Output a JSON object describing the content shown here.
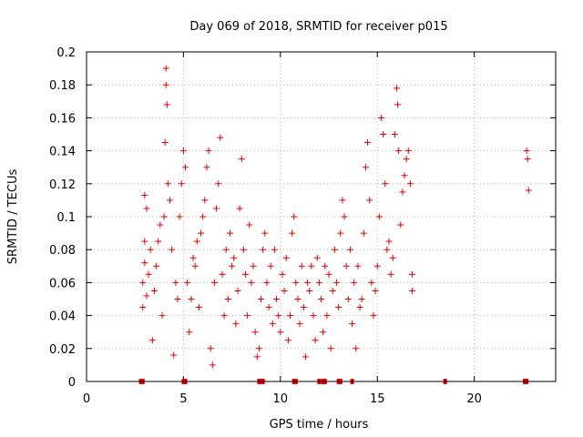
{
  "chart_data": {
    "type": "scatter",
    "title": "Day 069 of 2018, SRMTID for receiver p015",
    "xlabel": "GPS time / hours",
    "ylabel": "SRMTID / TECUs",
    "xlim": [
      0,
      24.2
    ],
    "ylim": [
      0,
      0.2
    ],
    "x_ticks": [
      0,
      5,
      10,
      15,
      20
    ],
    "x_tick_labels": [
      "0",
      "5",
      "10",
      "15",
      "20"
    ],
    "y_ticks": [
      0,
      0.02,
      0.04,
      0.06,
      0.08,
      0.1,
      0.12,
      0.14,
      0.16,
      0.18,
      0.2
    ],
    "y_tick_labels": [
      "0",
      "0.02",
      "0.04",
      "0.06",
      "0.08",
      "0.1",
      "0.12",
      "0.14",
      "0.16",
      "0.18",
      "0.2"
    ],
    "grid": true,
    "marker": "+",
    "marker_color": "#e00000",
    "series": [
      {
        "name": "SRMTID",
        "points": [
          [
            2.9,
            0.045
          ],
          [
            2.9,
            0.06
          ],
          [
            3.0,
            0.072
          ],
          [
            3.0,
            0.085
          ],
          [
            3.0,
            0.113
          ],
          [
            3.1,
            0.105
          ],
          [
            3.1,
            0.052
          ],
          [
            3.2,
            0.065
          ],
          [
            3.3,
            0.08
          ],
          [
            3.4,
            0.025
          ],
          [
            3.5,
            0.055
          ],
          [
            3.6,
            0.07
          ],
          [
            3.7,
            0.085
          ],
          [
            3.8,
            0.095
          ],
          [
            3.9,
            0.04
          ],
          [
            4.0,
            0.1
          ],
          [
            4.05,
            0.145
          ],
          [
            4.1,
            0.19
          ],
          [
            4.1,
            0.18
          ],
          [
            4.15,
            0.168
          ],
          [
            4.2,
            0.12
          ],
          [
            4.3,
            0.11
          ],
          [
            4.4,
            0.08
          ],
          [
            4.5,
            0.016
          ],
          [
            4.6,
            0.06
          ],
          [
            4.7,
            0.05
          ],
          [
            4.8,
            0.1
          ],
          [
            4.9,
            0.12
          ],
          [
            5.0,
            0.14
          ],
          [
            5.1,
            0.13
          ],
          [
            5.2,
            0.06
          ],
          [
            5.3,
            0.03
          ],
          [
            5.4,
            0.05
          ],
          [
            5.5,
            0.075
          ],
          [
            5.6,
            0.07
          ],
          [
            5.7,
            0.085
          ],
          [
            5.8,
            0.045
          ],
          [
            5.9,
            0.09
          ],
          [
            6.0,
            0.1
          ],
          [
            6.1,
            0.11
          ],
          [
            6.2,
            0.13
          ],
          [
            6.3,
            0.14
          ],
          [
            6.4,
            0.02
          ],
          [
            6.5,
            0.01
          ],
          [
            6.6,
            0.06
          ],
          [
            6.7,
            0.105
          ],
          [
            6.8,
            0.12
          ],
          [
            6.9,
            0.148
          ],
          [
            7.0,
            0.065
          ],
          [
            7.1,
            0.04
          ],
          [
            7.2,
            0.08
          ],
          [
            7.3,
            0.05
          ],
          [
            7.4,
            0.09
          ],
          [
            7.5,
            0.07
          ],
          [
            7.6,
            0.075
          ],
          [
            7.7,
            0.035
          ],
          [
            7.8,
            0.055
          ],
          [
            7.9,
            0.105
          ],
          [
            8.0,
            0.135
          ],
          [
            8.1,
            0.08
          ],
          [
            8.2,
            0.065
          ],
          [
            8.3,
            0.04
          ],
          [
            8.4,
            0.095
          ],
          [
            8.5,
            0.06
          ],
          [
            8.6,
            0.07
          ],
          [
            8.7,
            0.03
          ],
          [
            8.8,
            0.015
          ],
          [
            8.9,
            0.02
          ],
          [
            9.0,
            0.05
          ],
          [
            9.1,
            0.08
          ],
          [
            9.2,
            0.09
          ],
          [
            9.3,
            0.06
          ],
          [
            9.4,
            0.045
          ],
          [
            9.5,
            0.07
          ],
          [
            9.6,
            0.035
          ],
          [
            9.7,
            0.08
          ],
          [
            9.8,
            0.05
          ],
          [
            9.9,
            0.04
          ],
          [
            10.0,
            0.03
          ],
          [
            10.1,
            0.065
          ],
          [
            10.2,
            0.055
          ],
          [
            10.3,
            0.075
          ],
          [
            10.4,
            0.025
          ],
          [
            10.5,
            0.04
          ],
          [
            10.6,
            0.09
          ],
          [
            10.7,
            0.1
          ],
          [
            10.8,
            0.06
          ],
          [
            10.9,
            0.05
          ],
          [
            11.0,
            0.035
          ],
          [
            11.1,
            0.07
          ],
          [
            11.2,
            0.045
          ],
          [
            11.3,
            0.015
          ],
          [
            11.4,
            0.06
          ],
          [
            11.5,
            0.055
          ],
          [
            11.6,
            0.07
          ],
          [
            11.7,
            0.04
          ],
          [
            11.8,
            0.025
          ],
          [
            11.9,
            0.075
          ],
          [
            12.0,
            0.06
          ],
          [
            12.1,
            0.05
          ],
          [
            12.2,
            0.03
          ],
          [
            12.3,
            0.07
          ],
          [
            12.4,
            0.04
          ],
          [
            12.5,
            0.065
          ],
          [
            12.6,
            0.02
          ],
          [
            12.7,
            0.055
          ],
          [
            12.8,
            0.08
          ],
          [
            12.9,
            0.06
          ],
          [
            13.0,
            0.045
          ],
          [
            13.1,
            0.09
          ],
          [
            13.2,
            0.11
          ],
          [
            13.3,
            0.1
          ],
          [
            13.4,
            0.07
          ],
          [
            13.5,
            0.05
          ],
          [
            13.6,
            0.08
          ],
          [
            13.7,
            0.035
          ],
          [
            13.8,
            0.06
          ],
          [
            13.9,
            0.02
          ],
          [
            14.0,
            0.07
          ],
          [
            14.1,
            0.045
          ],
          [
            14.2,
            0.05
          ],
          [
            14.3,
            0.09
          ],
          [
            14.4,
            0.13
          ],
          [
            14.5,
            0.145
          ],
          [
            14.6,
            0.11
          ],
          [
            14.7,
            0.06
          ],
          [
            14.8,
            0.04
          ],
          [
            14.9,
            0.055
          ],
          [
            15.0,
            0.07
          ],
          [
            15.1,
            0.1
          ],
          [
            15.2,
            0.16
          ],
          [
            15.3,
            0.15
          ],
          [
            15.4,
            0.12
          ],
          [
            15.5,
            0.08
          ],
          [
            15.6,
            0.085
          ],
          [
            15.7,
            0.065
          ],
          [
            15.8,
            0.075
          ],
          [
            15.9,
            0.15
          ],
          [
            16.0,
            0.178
          ],
          [
            16.05,
            0.168
          ],
          [
            16.1,
            0.14
          ],
          [
            16.2,
            0.095
          ],
          [
            16.3,
            0.115
          ],
          [
            16.4,
            0.125
          ],
          [
            16.5,
            0.135
          ],
          [
            16.6,
            0.14
          ],
          [
            16.7,
            0.12
          ],
          [
            16.8,
            0.065
          ],
          [
            16.8,
            0.055
          ],
          [
            22.7,
            0.14
          ],
          [
            22.75,
            0.135
          ],
          [
            22.8,
            0.116
          ]
        ]
      }
    ],
    "zero_markers_x": [
      2.8,
      2.9,
      5.0,
      5.1,
      8.9,
      9.0,
      9.1,
      10.7,
      10.8,
      12.0,
      12.2,
      12.3,
      13.0,
      13.1,
      13.7,
      18.5,
      22.6,
      22.7
    ]
  }
}
